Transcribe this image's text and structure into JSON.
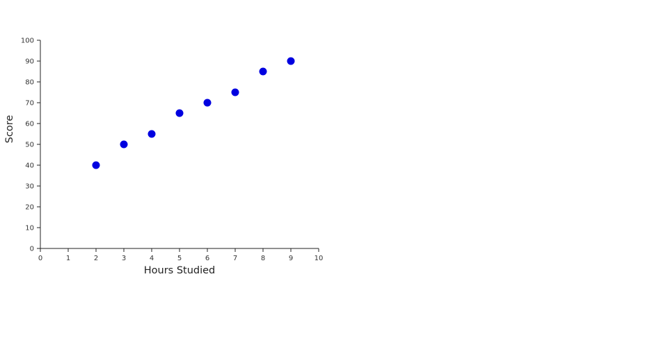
{
  "chart_data": {
    "type": "scatter",
    "title": "",
    "xlabel": "Hours Studied",
    "ylabel": "Score",
    "xlim": [
      0,
      10
    ],
    "ylim": [
      0,
      100
    ],
    "x_ticks": [
      0,
      1,
      2,
      3,
      4,
      5,
      6,
      7,
      8,
      9,
      10
    ],
    "y_ticks": [
      0,
      10,
      20,
      30,
      40,
      50,
      60,
      70,
      80,
      90,
      100
    ],
    "grid": false,
    "legend": "none",
    "point_color": "#0000e0",
    "axis_color": "#222222",
    "tick_label_color": "#333333",
    "axis_label_color": "#222222",
    "points": [
      {
        "x": 2,
        "y": 40
      },
      {
        "x": 3,
        "y": 50
      },
      {
        "x": 4,
        "y": 55
      },
      {
        "x": 5,
        "y": 65
      },
      {
        "x": 6,
        "y": 70
      },
      {
        "x": 7,
        "y": 75
      },
      {
        "x": 8,
        "y": 85
      },
      {
        "x": 9,
        "y": 90
      }
    ]
  }
}
